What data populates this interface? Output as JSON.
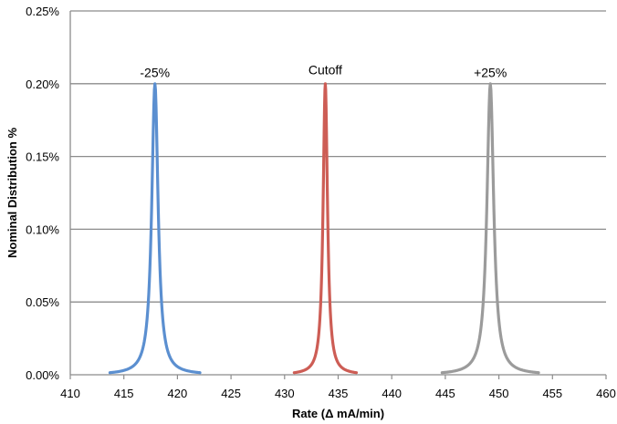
{
  "chart_data": {
    "type": "line",
    "title": "",
    "xlabel": "Rate (Δ mA/min)",
    "ylabel": "Nominal Distribution %",
    "xlim": [
      410,
      460
    ],
    "ylim": [
      0,
      0.25
    ],
    "xticks": [
      410,
      415,
      420,
      425,
      430,
      435,
      440,
      445,
      450,
      455,
      460
    ],
    "xtick_labels": [
      "410",
      "415",
      "420",
      "425",
      "430",
      "435",
      "440",
      "445",
      "450",
      "455",
      "460"
    ],
    "yticks": [
      0,
      0.05,
      0.1,
      0.15,
      0.2,
      0.25
    ],
    "ytick_labels": [
      "0.00%",
      "0.05%",
      "0.10%",
      "0.15%",
      "0.20%",
      "0.25%"
    ],
    "grid": "horizontal",
    "legend": "none",
    "series": [
      {
        "peak_x": 417.9,
        "peak_y": 0.2,
        "x_min": 413.7,
        "x_max": 422.1,
        "color": "#5b8fd0"
      },
      {
        "peak_x": 433.8,
        "peak_y": 0.2,
        "x_min": 430.9,
        "x_max": 436.7,
        "color": "#cd5d55"
      },
      {
        "peak_x": 449.2,
        "peak_y": 0.2,
        "x_min": 444.7,
        "x_max": 453.7,
        "color": "#9b9b9b"
      }
    ],
    "annotations": [
      {
        "text": "-25%",
        "x": 417.9,
        "y": 0.212
      },
      {
        "text": "Cutoff",
        "x": 433.8,
        "y": 0.214
      },
      {
        "text": "+25%",
        "x": 449.2,
        "y": 0.212
      }
    ]
  }
}
